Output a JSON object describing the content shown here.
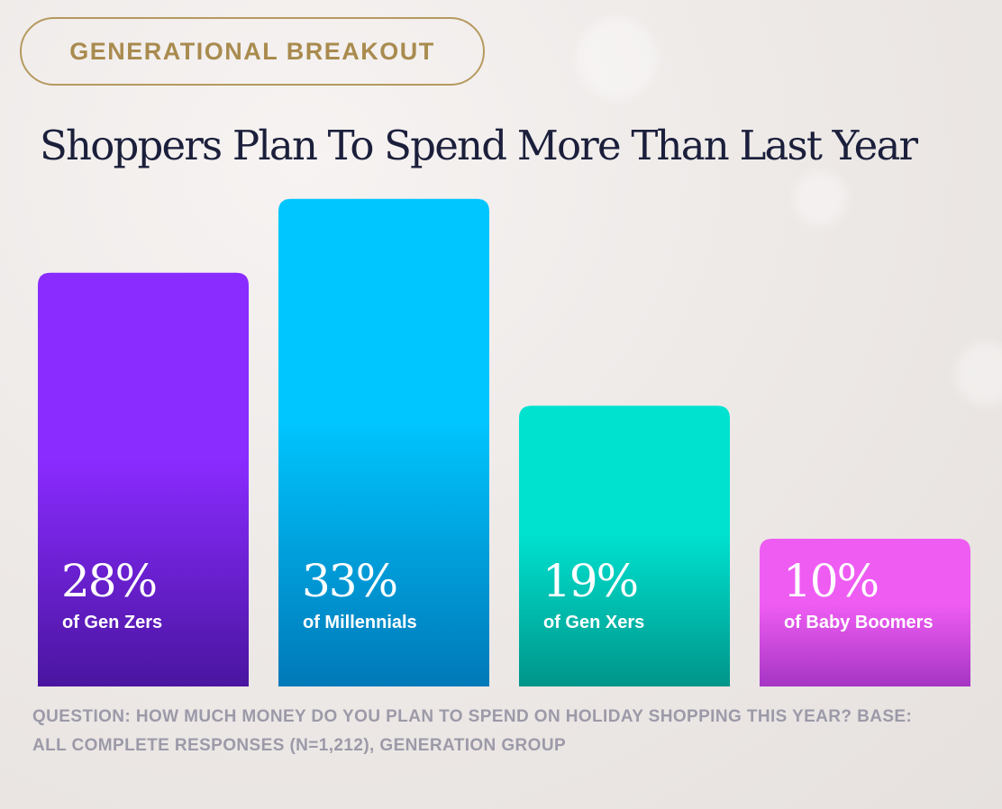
{
  "header": {
    "badge": "GENERATIONAL BREAKOUT",
    "title": "Shoppers Plan To Spend More Than Last Year"
  },
  "chart_data": {
    "type": "bar",
    "categories": [
      "Gen Zers",
      "Millennials",
      "Gen Xers",
      "Baby Boomers"
    ],
    "values": [
      28,
      33,
      19,
      10
    ],
    "value_labels": [
      "28%",
      "33%",
      "19%",
      "10%"
    ],
    "category_labels": [
      "of Gen Zers",
      "of Millennials",
      "of Gen Xers",
      "of Baby Boomers"
    ],
    "unit": "%",
    "grid": false,
    "legend": "none",
    "colors": [
      [
        "#8a2bff",
        "#4a15a0"
      ],
      [
        "#00c6ff",
        "#0079b8"
      ],
      [
        "#00e2d0",
        "#00958a"
      ],
      [
        "#ee5cf2",
        "#a535c4"
      ]
    ]
  },
  "footnote": "QUESTION: HOW MUCH MONEY DO YOU PLAN TO SPEND ON HOLIDAY SHOPPING THIS YEAR? BASE: ALL COMPLETE RESPONSES (N=1,212), GENERATION GROUP"
}
